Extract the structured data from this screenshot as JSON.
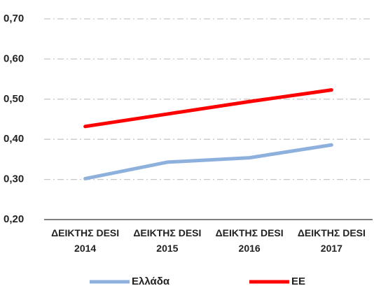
{
  "chart_data": {
    "type": "line",
    "categories": [
      "ΔΕΙΚΤΗΣ DESI 2014",
      "ΔΕΙΚΤΗΣ DESI 2015",
      "ΔΕΙΚΤΗΣ DESI 2016",
      "ΔΕΙΚΤΗΣ DESI 2017"
    ],
    "series": [
      {
        "name": "Ελλάδα",
        "color": "#8eb0dc",
        "values": [
          0.302,
          0.343,
          0.354,
          0.386
        ]
      },
      {
        "name": "EE",
        "color": "#ff0000",
        "values": [
          0.432,
          0.463,
          0.494,
          0.523
        ]
      }
    ],
    "ylim": [
      0.2,
      0.7
    ],
    "yticks": [
      {
        "value": 0.2,
        "label": "0,20"
      },
      {
        "value": 0.3,
        "label": "0,30"
      },
      {
        "value": 0.4,
        "label": "0,40"
      },
      {
        "value": 0.5,
        "label": "0,50"
      },
      {
        "value": 0.6,
        "label": "0,60"
      },
      {
        "value": 0.7,
        "label": "0,70"
      }
    ],
    "grid": true,
    "legend": "bottom"
  }
}
